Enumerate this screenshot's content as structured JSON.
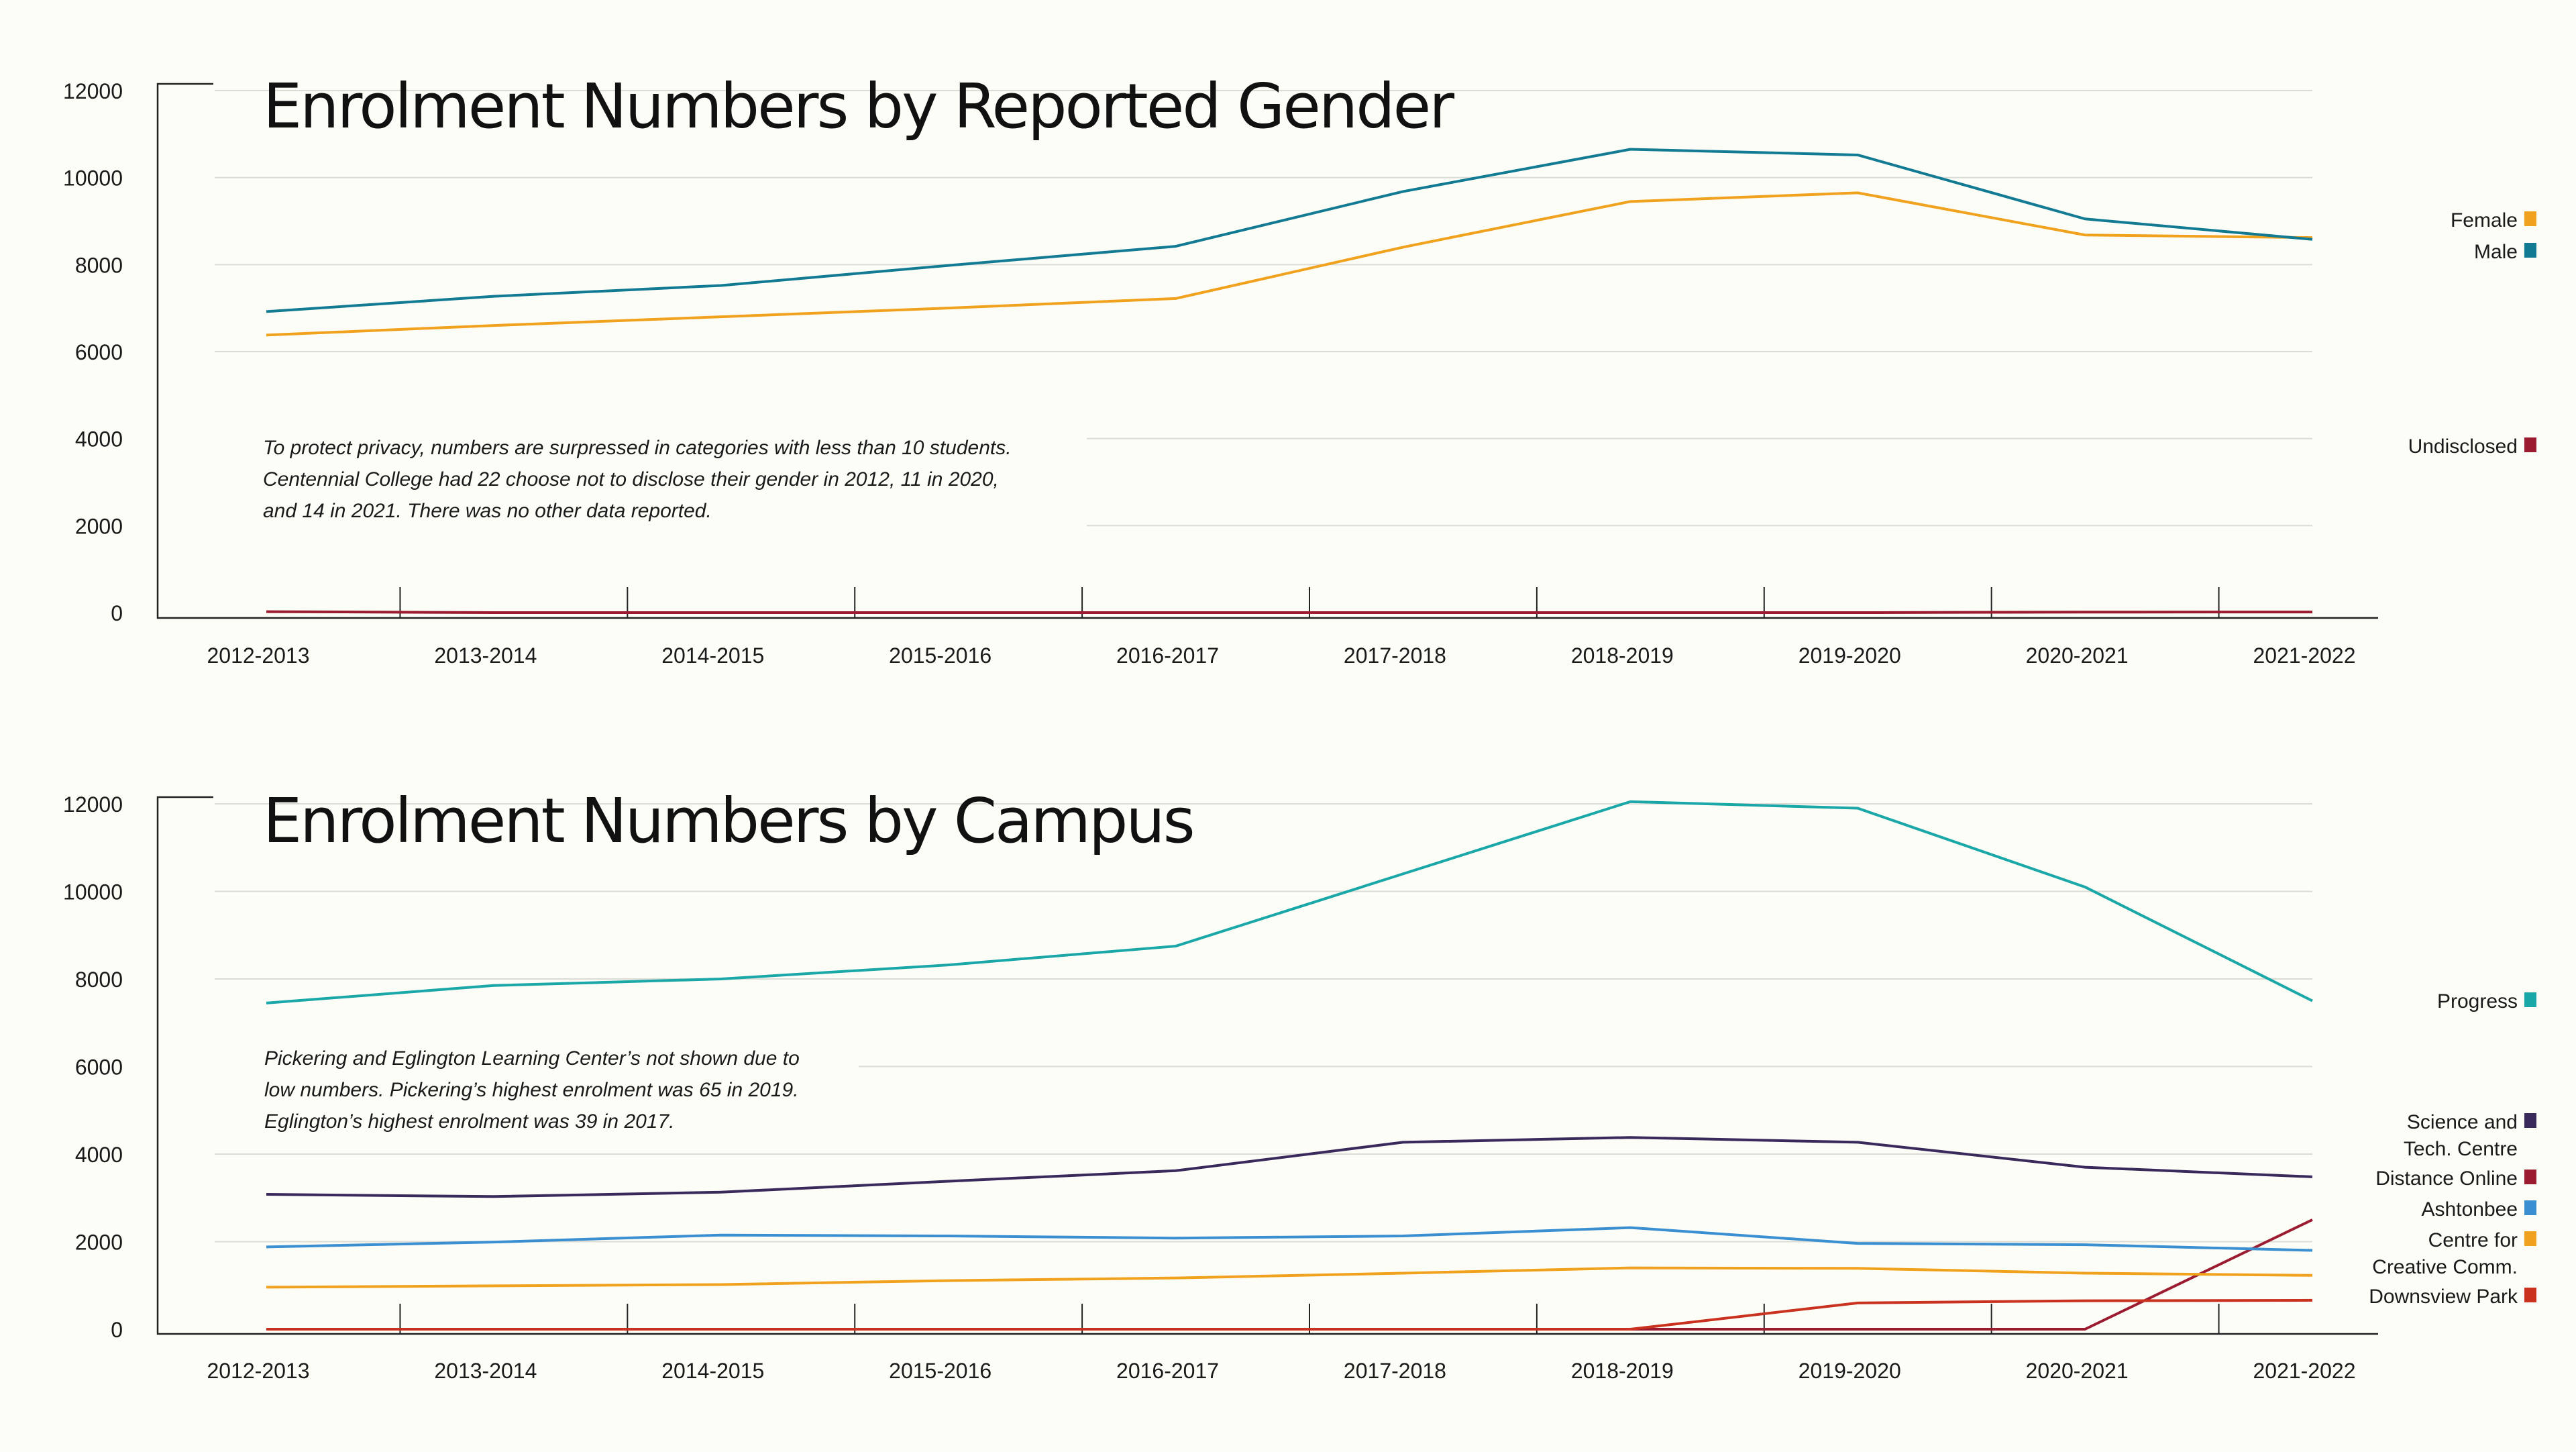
{
  "chart_data": [
    {
      "type": "line",
      "title": "Enrolment Numbers by Reported Gender",
      "categories": [
        "2012-2013",
        "2013-2014",
        "2014-2015",
        "2015-2016",
        "2016-2017",
        "2017-2018",
        "2018-2019",
        "2019-2020",
        "2020-2021",
        "2021-2022"
      ],
      "ylim": [
        0,
        12000
      ],
      "yticks": [
        "0",
        "2000",
        "4000",
        "6000",
        "8000",
        "10000",
        "12000"
      ],
      "grid": true,
      "legend_placement": "right",
      "note": [
        "To protect privacy, numbers are surpressed in categories with less than 10 students.",
        "Centennial College had 22 choose not to disclose their gender in 2012, 11 in 2020,",
        "and 14 in 2021. There was no other data reported."
      ],
      "series": [
        {
          "name": "Female",
          "color": "#f0a21e",
          "values": [
            6380,
            6600,
            6800,
            7000,
            7220,
            8400,
            9450,
            9650,
            8680,
            8620
          ]
        },
        {
          "name": "Male",
          "color": "#127b93",
          "values": [
            6920,
            7270,
            7520,
            7980,
            8420,
            9680,
            10650,
            10520,
            9050,
            8580
          ]
        },
        {
          "name": "Undisclosed",
          "color": "#9b1b30",
          "values": [
            22,
            0,
            0,
            0,
            0,
            0,
            0,
            0,
            11,
            14
          ]
        }
      ]
    },
    {
      "type": "line",
      "title": "Enrolment Numbers by Campus",
      "categories": [
        "2012-2013",
        "2013-2014",
        "2014-2015",
        "2015-2016",
        "2016-2017",
        "2017-2018",
        "2018-2019",
        "2019-2020",
        "2020-2021",
        "2021-2022"
      ],
      "ylim": [
        0,
        12000
      ],
      "yticks": [
        "0",
        "2000",
        "4000",
        "6000",
        "8000",
        "10000",
        "12000"
      ],
      "grid": true,
      "legend_placement": "right",
      "note": [
        "Pickering and Eglington Learning Center’s not shown due to",
        "low numbers. Pickering’s highest enrolment was 65 in 2019.",
        "Eglington’s highest enrolment was 39 in 2017."
      ],
      "series": [
        {
          "name": "Progress",
          "label_lines": [
            "Progress"
          ],
          "color": "#1aa7a8",
          "values": [
            7450,
            7850,
            8000,
            8320,
            8750,
            10400,
            12050,
            11900,
            10100,
            7500
          ]
        },
        {
          "name": "Science and Tech. Centre",
          "label_lines": [
            "Science and",
            "Tech. Centre"
          ],
          "color": "#3a2a5c",
          "values": [
            3080,
            3030,
            3130,
            3380,
            3620,
            4270,
            4380,
            4270,
            3700,
            3480
          ]
        },
        {
          "name": "Distance Online",
          "label_lines": [
            "Distance Online"
          ],
          "color": "#9b1b30",
          "values": [
            0,
            0,
            0,
            0,
            0,
            0,
            0,
            0,
            0,
            2500
          ]
        },
        {
          "name": "Ashtonbee",
          "label_lines": [
            "Ashtonbee"
          ],
          "color": "#3a8fd0",
          "values": [
            1880,
            1990,
            2150,
            2130,
            2080,
            2130,
            2320,
            1960,
            1930,
            1800
          ]
        },
        {
          "name": "Centre for Creative Comm.",
          "label_lines": [
            "Centre for",
            "Creative Comm."
          ],
          "color": "#f0a21e",
          "values": [
            960,
            990,
            1020,
            1110,
            1170,
            1280,
            1400,
            1390,
            1280,
            1230
          ]
        },
        {
          "name": "Downsview Park",
          "label_lines": [
            "Downsview Park"
          ],
          "color": "#c8321e",
          "values": [
            0,
            0,
            0,
            0,
            0,
            0,
            0,
            600,
            650,
            660
          ]
        }
      ]
    }
  ]
}
